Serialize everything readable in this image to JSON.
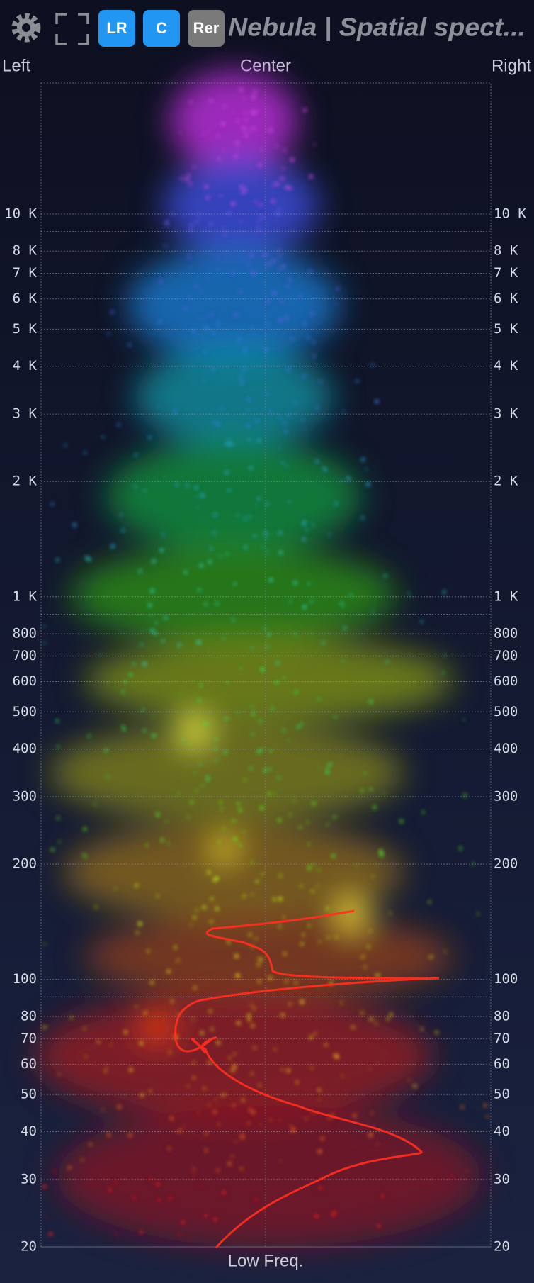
{
  "toolbar": {
    "buttons": [
      "LR",
      "C",
      "Rer"
    ],
    "title": "Nebula | Spatial spect..."
  },
  "axis": {
    "left": "Left",
    "center": "Center",
    "right": "Right",
    "bottom": "Low Freq.",
    "ylim": [
      20,
      22000
    ],
    "log": true,
    "ticks": [
      {
        "value": 10000,
        "label": "10 K"
      },
      {
        "value": 8000,
        "label": "8 K"
      },
      {
        "value": 7000,
        "label": "7 K"
      },
      {
        "value": 6000,
        "label": "6 K"
      },
      {
        "value": 5000,
        "label": "5 K"
      },
      {
        "value": 4000,
        "label": "4 K"
      },
      {
        "value": 3000,
        "label": "3 K"
      },
      {
        "value": 2000,
        "label": "2 K"
      },
      {
        "value": 1000,
        "label": "1 K"
      },
      800,
      700,
      600,
      500,
      400,
      300,
      200,
      100,
      80,
      70,
      60,
      50,
      40,
      30,
      20
    ],
    "minor_gridlines": [
      9000,
      900,
      90
    ]
  }
}
